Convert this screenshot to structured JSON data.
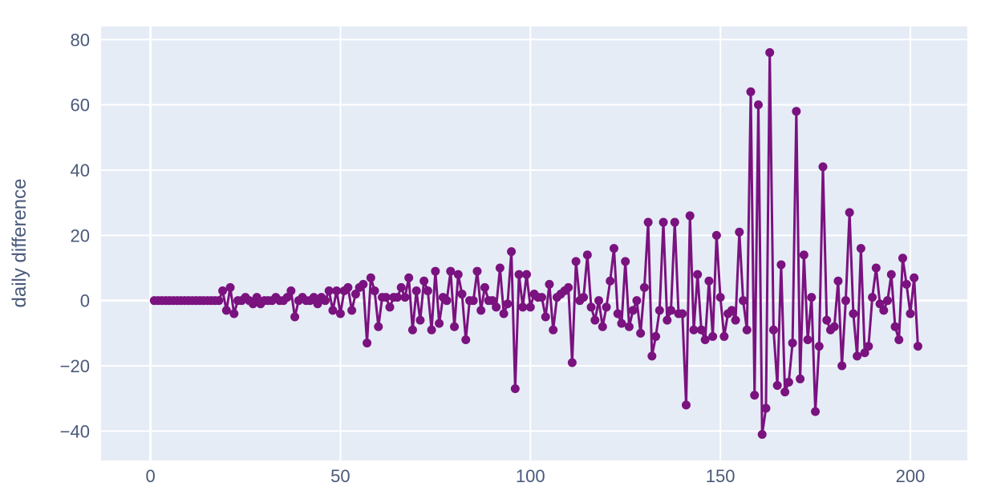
{
  "chart_data": {
    "type": "line",
    "mode": "lines+markers",
    "title": "",
    "xlabel": "",
    "ylabel": "daily difference",
    "xlim": [
      -13,
      215
    ],
    "ylim": [
      -49,
      84
    ],
    "xticks": [
      0,
      50,
      100,
      150,
      200
    ],
    "yticks": [
      -40,
      -20,
      0,
      20,
      40,
      60,
      80
    ],
    "tick_labels": {
      "x": [
        "0",
        "50",
        "100",
        "150",
        "200"
      ],
      "y": [
        "−40",
        "−20",
        "0",
        "20",
        "40",
        "60",
        "80"
      ]
    },
    "grid": true,
    "colors": {
      "plot_bg": "#e5ecf6",
      "grid": "#ffffff",
      "series": "#7a127f",
      "text": "#4a5a7a"
    },
    "series": [
      {
        "x": [
          1,
          2,
          3,
          4,
          5,
          6,
          7,
          8,
          9,
          10,
          11,
          12,
          13,
          14,
          15,
          16,
          17,
          18,
          19,
          20,
          21,
          22,
          23,
          24,
          25,
          26,
          27,
          28,
          29,
          30,
          31,
          32,
          33,
          34,
          35,
          36,
          37,
          38,
          39,
          40,
          41,
          42,
          43,
          44,
          45,
          46,
          47,
          48,
          49,
          50,
          51,
          52,
          53,
          54,
          55,
          56,
          57,
          58,
          59,
          60,
          61,
          62,
          63,
          64,
          65,
          66,
          67,
          68,
          69,
          70,
          71,
          72,
          73,
          74,
          75,
          76,
          77,
          78,
          79,
          80,
          81,
          82,
          83,
          84,
          85,
          86,
          87,
          88,
          89,
          90,
          91,
          92,
          93,
          94,
          95,
          96,
          97,
          98,
          99,
          100,
          101,
          102,
          103,
          104,
          105,
          106,
          107,
          108,
          109,
          110,
          111,
          112,
          113,
          114,
          115,
          116,
          117,
          118,
          119,
          120,
          121,
          122,
          123,
          124,
          125,
          126,
          127,
          128,
          129,
          130,
          131,
          132,
          133,
          134,
          135,
          136,
          137,
          138,
          139,
          140,
          141,
          142,
          143,
          144,
          145,
          146,
          147,
          148,
          149,
          150,
          151,
          152,
          153,
          154,
          155,
          156,
          157,
          158,
          159,
          160,
          161,
          162,
          163,
          164,
          165,
          166,
          167,
          168,
          169,
          170,
          171,
          172,
          173,
          174,
          175,
          176,
          177,
          178,
          179,
          180,
          181,
          182,
          183,
          184,
          185,
          186,
          187,
          188,
          189,
          190,
          191,
          192,
          193,
          194,
          195,
          196,
          197,
          198,
          199,
          200,
          201,
          202
        ],
        "values": [
          0,
          0,
          0,
          0,
          0,
          0,
          0,
          0,
          0,
          0,
          0,
          0,
          0,
          0,
          0,
          0,
          0,
          0,
          3,
          -3,
          4,
          -4,
          0,
          0,
          1,
          0,
          -1,
          1,
          -1,
          0,
          0,
          0,
          1,
          0,
          0,
          1,
          3,
          -5,
          0,
          1,
          0,
          0,
          1,
          -1,
          1,
          0,
          3,
          -3,
          3,
          -4,
          3,
          4,
          -3,
          2,
          4,
          5,
          -13,
          7,
          3,
          -8,
          1,
          1,
          -2,
          1,
          1,
          4,
          1,
          7,
          -9,
          3,
          -6,
          6,
          3,
          -9,
          9,
          -7,
          1,
          0,
          9,
          -8,
          8,
          2,
          -12,
          0,
          0,
          9,
          -3,
          4,
          0,
          0,
          -2,
          10,
          -4,
          -1,
          15,
          -27,
          8,
          -2,
          8,
          -2,
          2,
          1,
          1,
          -5,
          5,
          -9,
          1,
          2,
          3,
          4,
          -19,
          12,
          0,
          1,
          14,
          -2,
          -6,
          0,
          -8,
          -2,
          6,
          16,
          -4,
          -7,
          12,
          -8,
          -3,
          0,
          -10,
          4,
          24,
          -17,
          -11,
          -3,
          24,
          -6,
          -3,
          24,
          -4,
          -4,
          -32,
          26,
          -9,
          8,
          -9,
          -12,
          6,
          -11,
          20,
          1,
          -11,
          -4,
          -3,
          -6,
          21,
          0,
          -9,
          64,
          -29,
          60,
          -41,
          -33,
          76,
          -9,
          -26,
          11,
          -28,
          -25,
          -13,
          58,
          -24,
          14,
          -12,
          1,
          -34,
          -14,
          41,
          -6,
          -9,
          -8,
          6,
          -20,
          0,
          27,
          -4,
          -17,
          16,
          -16,
          -14,
          1,
          10,
          -1,
          -3,
          0,
          8,
          -8,
          -12,
          13,
          5,
          -4,
          7,
          -14
        ]
      }
    ]
  }
}
